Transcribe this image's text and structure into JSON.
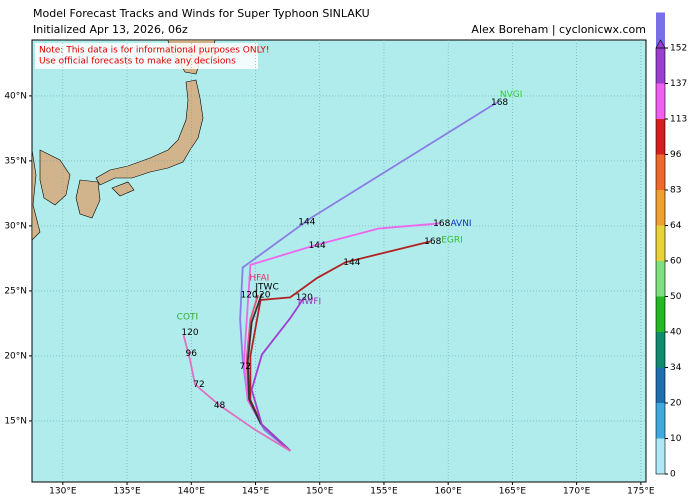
{
  "map": {
    "title": "Model Forecast Tracks and Winds for Super Typhoon SINLAKU",
    "subtitle": "Initialized Apr 13, 2026, 06z",
    "credit": "Alex Boreham | cyclonicwx.com",
    "note": [
      "Note: This data is for informational purposes ONLY!",
      "Use official forecasts to make any decisions"
    ],
    "xlim": [
      127.6,
      175.4
    ],
    "ylim": [
      10.3,
      44.3
    ],
    "xticks": [
      {
        "value": 130,
        "label": "130°E"
      },
      {
        "value": 135,
        "label": "135°E"
      },
      {
        "value": 140,
        "label": "140°E"
      },
      {
        "value": 145,
        "label": "145°E"
      },
      {
        "value": 150,
        "label": "150°E"
      },
      {
        "value": 155,
        "label": "155°E"
      },
      {
        "value": 160,
        "label": "160°E"
      },
      {
        "value": 165,
        "label": "165°E"
      },
      {
        "value": 170,
        "label": "170°E"
      },
      {
        "value": 175,
        "label": "175°E"
      }
    ],
    "yticks": [
      {
        "value": 15,
        "label": "15°N"
      },
      {
        "value": 20,
        "label": "20°N"
      },
      {
        "value": 25,
        "label": "25°N"
      },
      {
        "value": 30,
        "label": "30°N"
      },
      {
        "value": 35,
        "label": "35°N"
      },
      {
        "value": 40,
        "label": "40°N"
      }
    ],
    "grid": true,
    "colorbar": {
      "ticks": [
        0,
        10,
        20,
        34,
        40,
        50,
        60,
        64,
        83,
        96,
        113,
        137,
        152
      ],
      "colors": [
        "#aee8f5",
        "#3fa8dc",
        "#1f6fb0",
        "#0e8c6e",
        "#25b825",
        "#7fe07f",
        "#e8d23a",
        "#f0a030",
        "#ee6a2a",
        "#d62020",
        "#f060f0",
        "#9b3fd0",
        "#7a6fe8"
      ]
    },
    "tracks": [
      {
        "name": "NVGI",
        "name_color": "#33cc33",
        "name_lon": 164.9,
        "name_lat": 40.1,
        "color": "#8a7ee6",
        "lon": [
          147.7,
          145.7,
          144.4,
          144.0,
          143.8,
          144.0,
          149.3,
          163.8
        ],
        "lat": [
          12.7,
          14.3,
          16.6,
          19.7,
          22.8,
          26.8,
          30.6,
          39.5
        ],
        "labels": [
          {
            "hour": 144,
            "lon": 149.0,
            "lat": 30.3
          },
          {
            "hour": 168,
            "lon": 164.0,
            "lat": 39.5
          }
        ]
      },
      {
        "name": "AVNI",
        "name_color": "#1030c0",
        "name_lon": 161.0,
        "name_lat": 30.2,
        "color": "#ee66ee",
        "lon": [
          147.7,
          145.5,
          144.4,
          144.1,
          144.3,
          144.6,
          149.6,
          154.6,
          159.4
        ],
        "lat": [
          12.7,
          14.7,
          16.6,
          19.5,
          22.5,
          27.0,
          28.5,
          29.8,
          30.2
        ],
        "labels": [
          {
            "hour": 144,
            "lon": 149.8,
            "lat": 28.5
          },
          {
            "hour": 168,
            "lon": 159.5,
            "lat": 30.2
          }
        ]
      },
      {
        "name": "EGRI",
        "name_color": "#33bb33",
        "name_lon": 160.3,
        "name_lat": 28.9,
        "color": "#b22222",
        "lon": [
          147.7,
          145.5,
          144.6,
          144.6,
          145.4,
          147.7,
          149.8,
          152.0,
          158.6
        ],
        "lat": [
          12.7,
          14.7,
          16.6,
          20.0,
          24.3,
          24.5,
          26.0,
          27.2,
          28.8
        ],
        "labels": [
          {
            "hour": 144,
            "lon": 152.5,
            "lat": 27.2
          },
          {
            "hour": 168,
            "lon": 158.8,
            "lat": 28.8
          }
        ]
      },
      {
        "name": "HFAI",
        "name_color": "#dd3366",
        "name_lon": 145.3,
        "name_lat": 26.0,
        "color": "#e0557a",
        "lon": [
          147.7,
          145.5,
          144.5,
          144.3,
          144.6,
          145.2
        ],
        "lat": [
          12.7,
          14.7,
          16.6,
          19.6,
          22.8,
          24.7
        ],
        "labels": [
          {
            "hour": 120,
            "lon": 144.5,
            "lat": 24.7
          }
        ]
      },
      {
        "name": "JTWC",
        "name_color": "#000000",
        "name_lon": 145.9,
        "name_lat": 25.3,
        "color": "#333333",
        "lon": [
          147.7,
          145.4,
          144.5,
          144.4,
          144.7,
          145.5
        ],
        "lat": [
          12.7,
          14.8,
          16.7,
          19.6,
          22.6,
          24.8
        ],
        "labels": [
          {
            "hour": 72,
            "lon": 144.2,
            "lat": 19.2
          },
          {
            "hour": 120,
            "lon": 145.5,
            "lat": 24.7
          }
        ]
      },
      {
        "name": "HWFI",
        "name_color": "#9b30c0",
        "name_lon": 149.2,
        "name_lat": 24.2,
        "color": "#a040d0",
        "lon": [
          147.7,
          145.5,
          144.7,
          145.5,
          147.7,
          148.8
        ],
        "lat": [
          12.7,
          14.7,
          17.4,
          20.1,
          22.9,
          24.5
        ],
        "labels": [
          {
            "hour": 120,
            "lon": 148.8,
            "lat": 24.5
          }
        ]
      },
      {
        "name": "COTI",
        "name_color": "#33aa33",
        "name_lon": 139.7,
        "name_lat": 23.0,
        "color": "#e070c0",
        "lon": [
          147.7,
          145.0,
          142.2,
          140.3,
          139.9,
          139.4
        ],
        "lat": [
          12.7,
          14.3,
          16.2,
          17.8,
          19.7,
          21.6
        ],
        "labels": [
          {
            "hour": 48,
            "lon": 142.2,
            "lat": 16.2
          },
          {
            "hour": 72,
            "lon": 140.6,
            "lat": 17.8
          },
          {
            "hour": 96,
            "lon": 140.0,
            "lat": 20.2
          },
          {
            "hour": 120,
            "lon": 139.9,
            "lat": 21.8
          }
        ]
      }
    ]
  }
}
